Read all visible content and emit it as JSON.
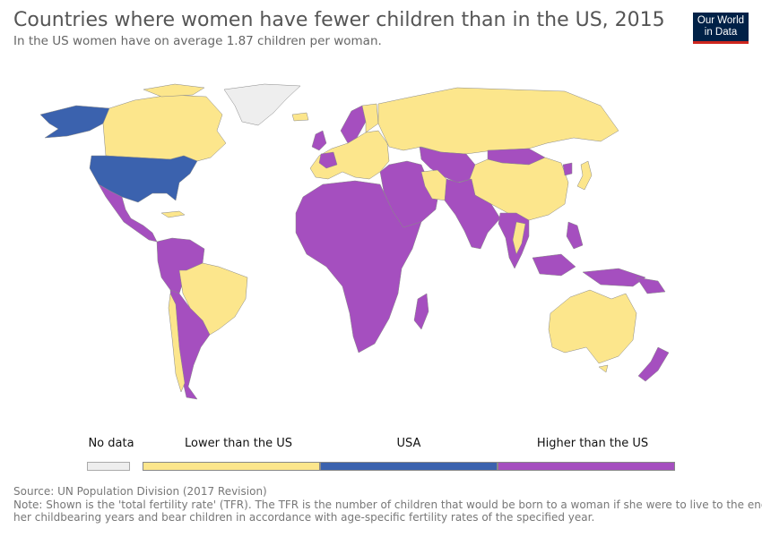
{
  "title": "Countries where women have fewer children than in the US, 2015",
  "subtitle": "In the US women have on average 1.87 children per woman.",
  "logo": {
    "line1": "Our World",
    "line2": "in Data"
  },
  "colors": {
    "no_data": "#eeeeee",
    "lower": "#fce68c",
    "usa": "#3b62ae",
    "higher": "#a54fbf",
    "border": "#888888"
  },
  "legend": {
    "no_data": "No data",
    "lower": "Lower than the US",
    "usa": "USA",
    "higher": "Higher than the US"
  },
  "footer": {
    "source": "Source: UN Population Division (2017 Revision)",
    "note_line1": "Note: Shown is the 'total fertility rate' (TFR). The TFR is the number of children that would be born to a woman if she were to live to the end of",
    "note_line2": "her childbearing years and bear children in accordance with age-specific fertility rates of the specified year."
  }
}
